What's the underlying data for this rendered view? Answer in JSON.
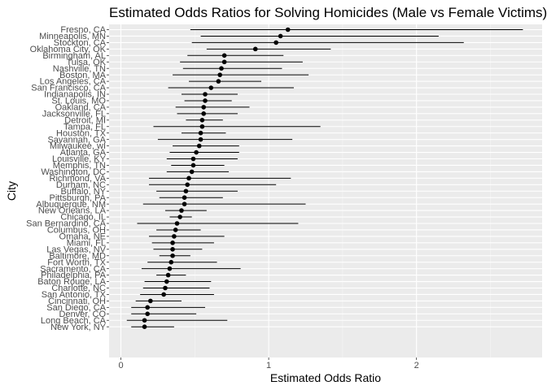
{
  "chart_data": {
    "type": "scatter",
    "title": "Estimated Odds Ratios for Solving Homicides (Male vs Female Victims)",
    "xlabel": "Estimated Odds Ratio",
    "ylabel": "City",
    "xlim": [
      -0.08,
      2.85
    ],
    "x_ticks": [
      0,
      1,
      2
    ],
    "grid": true,
    "error_bars": true,
    "points": [
      {
        "city": "Fresno, CA",
        "or": 1.13,
        "low": 0.47,
        "high": 2.72
      },
      {
        "city": "Minneapolis, MN",
        "or": 1.08,
        "low": 0.54,
        "high": 2.15
      },
      {
        "city": "Stockton, CA",
        "or": 1.05,
        "low": 0.48,
        "high": 2.32
      },
      {
        "city": "Oklahoma City, OK",
        "or": 0.91,
        "low": 0.58,
        "high": 1.42
      },
      {
        "city": "Birmingham, AL",
        "or": 0.7,
        "low": 0.45,
        "high": 1.1
      },
      {
        "city": "Tulsa, OK",
        "or": 0.7,
        "low": 0.4,
        "high": 1.23
      },
      {
        "city": "Nashville, TN",
        "or": 0.68,
        "low": 0.42,
        "high": 1.09
      },
      {
        "city": "Boston, MA",
        "or": 0.67,
        "low": 0.35,
        "high": 1.27
      },
      {
        "city": "Los Angeles, CA",
        "or": 0.66,
        "low": 0.46,
        "high": 0.95
      },
      {
        "city": "San Francisco, CA",
        "or": 0.61,
        "low": 0.32,
        "high": 1.17
      },
      {
        "city": "Indianapolis, IN",
        "or": 0.57,
        "low": 0.41,
        "high": 0.79
      },
      {
        "city": "St. Louis, MO",
        "or": 0.57,
        "low": 0.43,
        "high": 0.75
      },
      {
        "city": "Oakland, CA",
        "or": 0.56,
        "low": 0.37,
        "high": 0.87
      },
      {
        "city": "Jacksonville, FL",
        "or": 0.56,
        "low": 0.38,
        "high": 0.79
      },
      {
        "city": "Detroit, MI",
        "or": 0.55,
        "low": 0.44,
        "high": 0.69
      },
      {
        "city": "Tampa, FL",
        "or": 0.55,
        "low": 0.22,
        "high": 1.35
      },
      {
        "city": "Houston, TX",
        "or": 0.54,
        "low": 0.41,
        "high": 0.71
      },
      {
        "city": "Savannah, GA",
        "or": 0.54,
        "low": 0.25,
        "high": 1.16
      },
      {
        "city": "Milwaukee, wI",
        "or": 0.53,
        "low": 0.35,
        "high": 0.8
      },
      {
        "city": "Atlanta, GA",
        "or": 0.51,
        "low": 0.33,
        "high": 0.8
      },
      {
        "city": "Louisville, KY",
        "or": 0.49,
        "low": 0.31,
        "high": 0.79
      },
      {
        "city": "Memphis, TN",
        "or": 0.49,
        "low": 0.34,
        "high": 0.7
      },
      {
        "city": "Washington, DC",
        "or": 0.48,
        "low": 0.31,
        "high": 0.73
      },
      {
        "city": "Richmond, VA",
        "or": 0.46,
        "low": 0.19,
        "high": 1.15
      },
      {
        "city": "Durham, NC",
        "or": 0.45,
        "low": 0.19,
        "high": 1.05
      },
      {
        "city": "Buffalo, NY",
        "or": 0.44,
        "low": 0.24,
        "high": 0.79
      },
      {
        "city": "Pittsburgh, PA",
        "or": 0.43,
        "low": 0.26,
        "high": 0.69
      },
      {
        "city": "Albuquerque, NM",
        "or": 0.43,
        "low": 0.15,
        "high": 1.25
      },
      {
        "city": "New Orleans, LA",
        "or": 0.41,
        "low": 0.3,
        "high": 0.58
      },
      {
        "city": "Chicago, IL",
        "or": 0.4,
        "low": 0.33,
        "high": 0.48
      },
      {
        "city": "San Bernardino, CA",
        "or": 0.38,
        "low": 0.11,
        "high": 1.2
      },
      {
        "city": "Columbus, OH",
        "or": 0.37,
        "low": 0.24,
        "high": 0.54
      },
      {
        "city": "Omaha, NE",
        "or": 0.36,
        "low": 0.19,
        "high": 0.7
      },
      {
        "city": "Miami, FL",
        "or": 0.35,
        "low": 0.21,
        "high": 0.63
      },
      {
        "city": "Las Vegas, NV",
        "or": 0.35,
        "low": 0.22,
        "high": 0.55
      },
      {
        "city": "Baltimore, MD",
        "or": 0.35,
        "low": 0.26,
        "high": 0.47
      },
      {
        "city": "Fort Worth, TX",
        "or": 0.34,
        "low": 0.18,
        "high": 0.65
      },
      {
        "city": "Sacramento, CA",
        "or": 0.33,
        "low": 0.14,
        "high": 0.81
      },
      {
        "city": "Philadelphia, PA",
        "or": 0.32,
        "low": 0.24,
        "high": 0.44
      },
      {
        "city": "Baton Rouge, LA",
        "or": 0.31,
        "low": 0.16,
        "high": 0.61
      },
      {
        "city": "Charlotte, NC",
        "or": 0.3,
        "low": 0.15,
        "high": 0.6
      },
      {
        "city": "San Antonio, TX",
        "or": 0.29,
        "low": 0.13,
        "high": 0.63
      },
      {
        "city": "Cincinnati, OH",
        "or": 0.2,
        "low": 0.1,
        "high": 0.41
      },
      {
        "city": "San Diego, CA",
        "or": 0.18,
        "low": 0.07,
        "high": 0.57
      },
      {
        "city": "Denver, CO",
        "or": 0.18,
        "low": 0.07,
        "high": 0.51
      },
      {
        "city": "Long Beach, CA",
        "or": 0.16,
        "low": 0.04,
        "high": 0.72
      },
      {
        "city": "New York, NY",
        "or": 0.16,
        "low": 0.07,
        "high": 0.36
      }
    ]
  }
}
